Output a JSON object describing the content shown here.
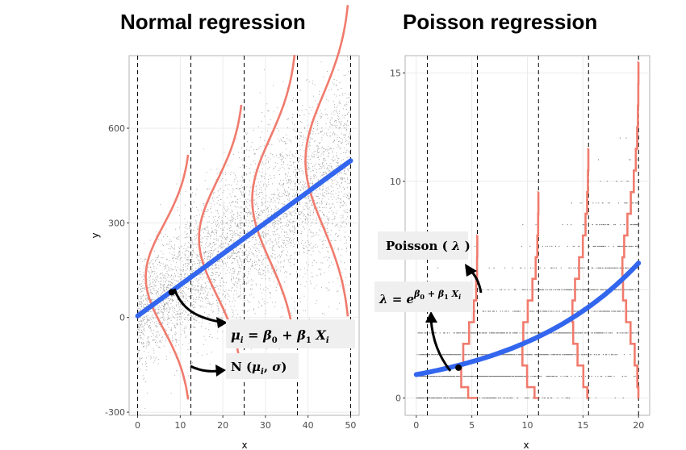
{
  "titles": {
    "left": "Normal regression",
    "right": "Poisson regression"
  },
  "colors": {
    "line": "#3366ee",
    "dist": "#f07b6d",
    "points": "#444444",
    "grid": "#ebebeb",
    "dash": "#000000"
  },
  "chart_data": [
    {
      "type": "scatter",
      "title": "Normal regression",
      "xlabel": "x",
      "ylabel": "y",
      "xlim": [
        -2,
        52
      ],
      "ylim": [
        -310,
        830
      ],
      "x_ticks": [
        0,
        10,
        20,
        30,
        40,
        50
      ],
      "y_ticks": [
        -300,
        0,
        300,
        600
      ],
      "regression_line": {
        "x": [
          0,
          50
        ],
        "y": [
          5,
          497
        ]
      },
      "vertical_dashed_x": [
        0,
        12.5,
        25,
        37.5,
        50
      ],
      "distribution_at_x": [
        12.5,
        25,
        37.5,
        50
      ],
      "point_marker": {
        "x": 8,
        "y": 80
      },
      "annotations": [
        {
          "label": "mu_eq",
          "text": "μi = β0 + β1 Xi"
        },
        {
          "label": "dist",
          "text": "N (μi, σ)"
        }
      ]
    },
    {
      "type": "scatter",
      "title": "Poisson regression",
      "xlabel": "x",
      "ylabel": "",
      "xlim": [
        -1,
        21
      ],
      "ylim": [
        -0.8,
        15.8
      ],
      "x_ticks": [
        0,
        5,
        10,
        15,
        20
      ],
      "y_ticks": [
        0,
        5,
        10,
        15
      ],
      "regression_curve": {
        "formula": "exp(b0 + b1*x)",
        "b0": 0.077,
        "b1": 0.0876,
        "x_range": [
          0,
          20
        ]
      },
      "vertical_dashed_x": [
        1,
        5.5,
        11,
        15.5,
        20
      ],
      "distribution_at_x": [
        5.5,
        11,
        15.5,
        20
      ],
      "point_marker": {
        "x": 3.8,
        "y": 1.4
      },
      "annotations": [
        {
          "label": "poisson",
          "text": "Poisson ( λ )"
        },
        {
          "label": "lambda_eq",
          "text": "λ = e^(β0 + β1 Xi)"
        }
      ]
    }
  ],
  "annotations": {
    "poisson_name": "Poisson",
    "poisson_arg": "λ",
    "lambda_sym": "λ",
    "e": "e",
    "beta": "β",
    "sub0": "0",
    "sub1": "1",
    "sub_i": "i",
    "mu": "μ",
    "X": "X",
    "N": "N",
    "sigma": "σ"
  }
}
